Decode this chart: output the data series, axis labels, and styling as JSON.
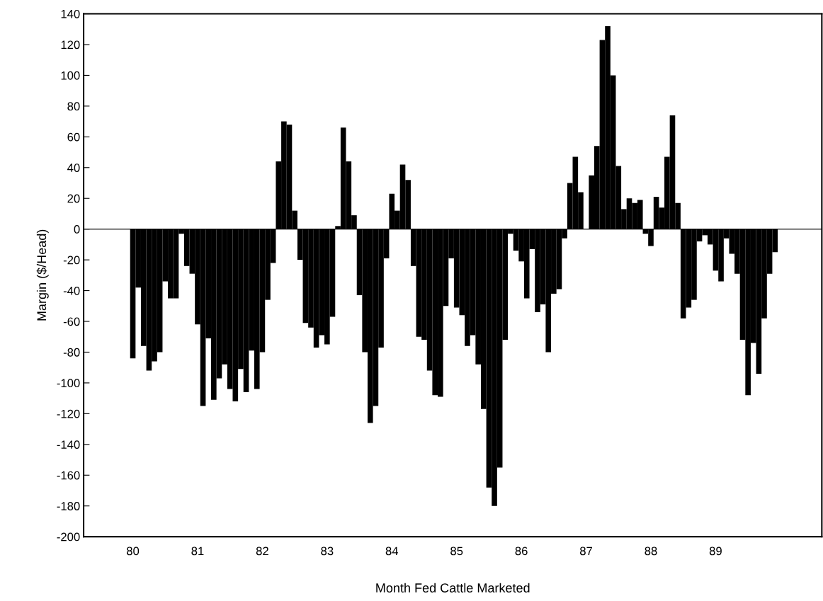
{
  "chart_data": {
    "type": "bar",
    "xlabel": "Month Fed Cattle Marketed",
    "ylabel": "Margin ($/Head)",
    "categories": [
      "80",
      null,
      null,
      null,
      null,
      null,
      null,
      null,
      null,
      null,
      null,
      null,
      "81",
      null,
      null,
      null,
      null,
      null,
      null,
      null,
      null,
      null,
      null,
      null,
      "82",
      null,
      null,
      null,
      null,
      null,
      null,
      null,
      null,
      null,
      null,
      null,
      "83",
      null,
      null,
      null,
      null,
      null,
      null,
      null,
      null,
      null,
      null,
      null,
      "84",
      null,
      null,
      null,
      null,
      null,
      null,
      null,
      null,
      null,
      null,
      null,
      "85",
      null,
      null,
      null,
      null,
      null,
      null,
      null,
      null,
      null,
      null,
      null,
      "86",
      null,
      null,
      null,
      null,
      null,
      null,
      null,
      null,
      null,
      null,
      null,
      "87",
      null,
      null,
      null,
      null,
      null,
      null,
      null,
      null,
      null,
      null,
      null,
      "88",
      null,
      null,
      null,
      null,
      null,
      null,
      null,
      null,
      null,
      null,
      null,
      "89",
      null,
      null,
      null,
      null,
      null,
      null,
      null,
      null,
      null,
      null,
      null
    ],
    "values": [
      -84,
      -38,
      -76,
      -92,
      -86,
      -80,
      -34,
      -45,
      -45,
      -3,
      -24,
      -29,
      -62,
      -115,
      -71,
      -111,
      -97,
      -88,
      -104,
      -112,
      -91,
      -106,
      -79,
      -104,
      -80,
      -46,
      -22,
      44,
      70,
      68,
      12,
      -20,
      -61,
      -64,
      -77,
      -69,
      -75,
      -57,
      2,
      66,
      44,
      9,
      -43,
      -80,
      -126,
      -115,
      -77,
      -19,
      23,
      12,
      42,
      32,
      -24,
      -70,
      -72,
      -92,
      -108,
      -109,
      -50,
      -19,
      -51,
      -56,
      -76,
      -69,
      -88,
      -117,
      -168,
      -180,
      -155,
      -72,
      -3,
      -14,
      -21,
      -45,
      -13,
      -54,
      -49,
      -80,
      -42,
      -39,
      -6,
      30,
      47,
      24,
      0,
      35,
      54,
      123,
      132,
      100,
      41,
      13,
      20,
      17,
      19,
      -3,
      -11,
      21,
      14,
      47,
      74,
      17,
      -58,
      -51,
      -46,
      -8,
      -4,
      -10,
      -27,
      -34,
      -6,
      -16,
      -29,
      -72,
      -108,
      -74,
      -94,
      -58,
      -29,
      -15
    ],
    "color": "#000000",
    "ylim": [
      -200,
      140
    ],
    "yticks": [
      -200,
      -180,
      -160,
      -140,
      -120,
      -100,
      -80,
      -60,
      -40,
      -20,
      0,
      20,
      40,
      60,
      80,
      100,
      120,
      140
    ],
    "ref_lines": [
      {
        "axis": "y",
        "value": 0,
        "color": "#000000"
      }
    ],
    "grid": false
  }
}
